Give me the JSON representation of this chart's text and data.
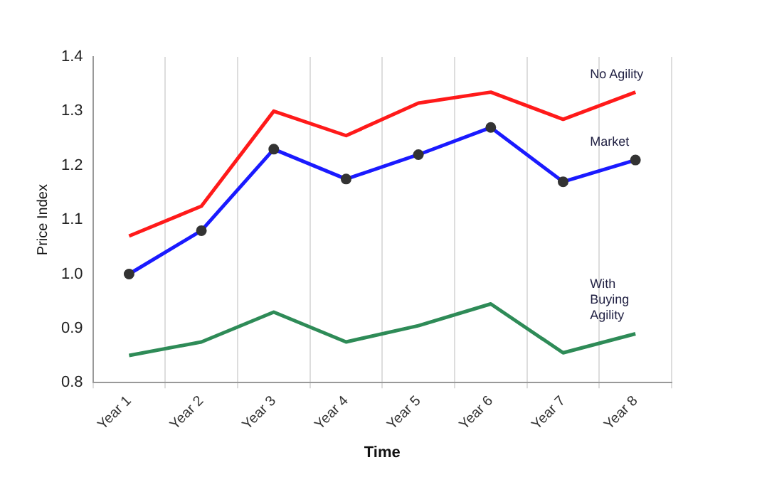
{
  "chart_data": {
    "type": "line",
    "xlabel": "Time",
    "ylabel": "Price Index",
    "categories": [
      "Year 1",
      "Year 2",
      "Year 3",
      "Year 4",
      "Year 5",
      "Year 6",
      "Year 7",
      "Year 8"
    ],
    "series": [
      {
        "name": "No Agility",
        "color": "#ff1a1a",
        "marker": "none",
        "values": [
          1.07,
          1.125,
          1.3,
          1.255,
          1.315,
          1.335,
          1.285,
          1.335
        ]
      },
      {
        "name": "Market",
        "color": "#1a1aff",
        "marker": "circle",
        "values": [
          1.0,
          1.08,
          1.23,
          1.175,
          1.22,
          1.27,
          1.17,
          1.21
        ]
      },
      {
        "name": "With Buying Agility",
        "color": "#2e8b57",
        "marker": "none",
        "values": [
          0.85,
          0.875,
          0.93,
          0.875,
          0.905,
          0.945,
          0.855,
          0.89
        ]
      }
    ],
    "ylim": [
      0.8,
      1.4
    ],
    "yticks": [
      {
        "value": 0.8,
        "label": "0.8"
      },
      {
        "value": 0.9,
        "label": "0.9"
      },
      {
        "value": 1.0,
        "label": "1.0"
      },
      {
        "value": 1.1,
        "label": "1.1"
      },
      {
        "value": 1.2,
        "label": "1.2"
      },
      {
        "value": 1.3,
        "label": "1.3"
      },
      {
        "value": 1.4,
        "label": "1.4"
      }
    ],
    "grid": "x",
    "legend": false,
    "line_style": "solid"
  }
}
